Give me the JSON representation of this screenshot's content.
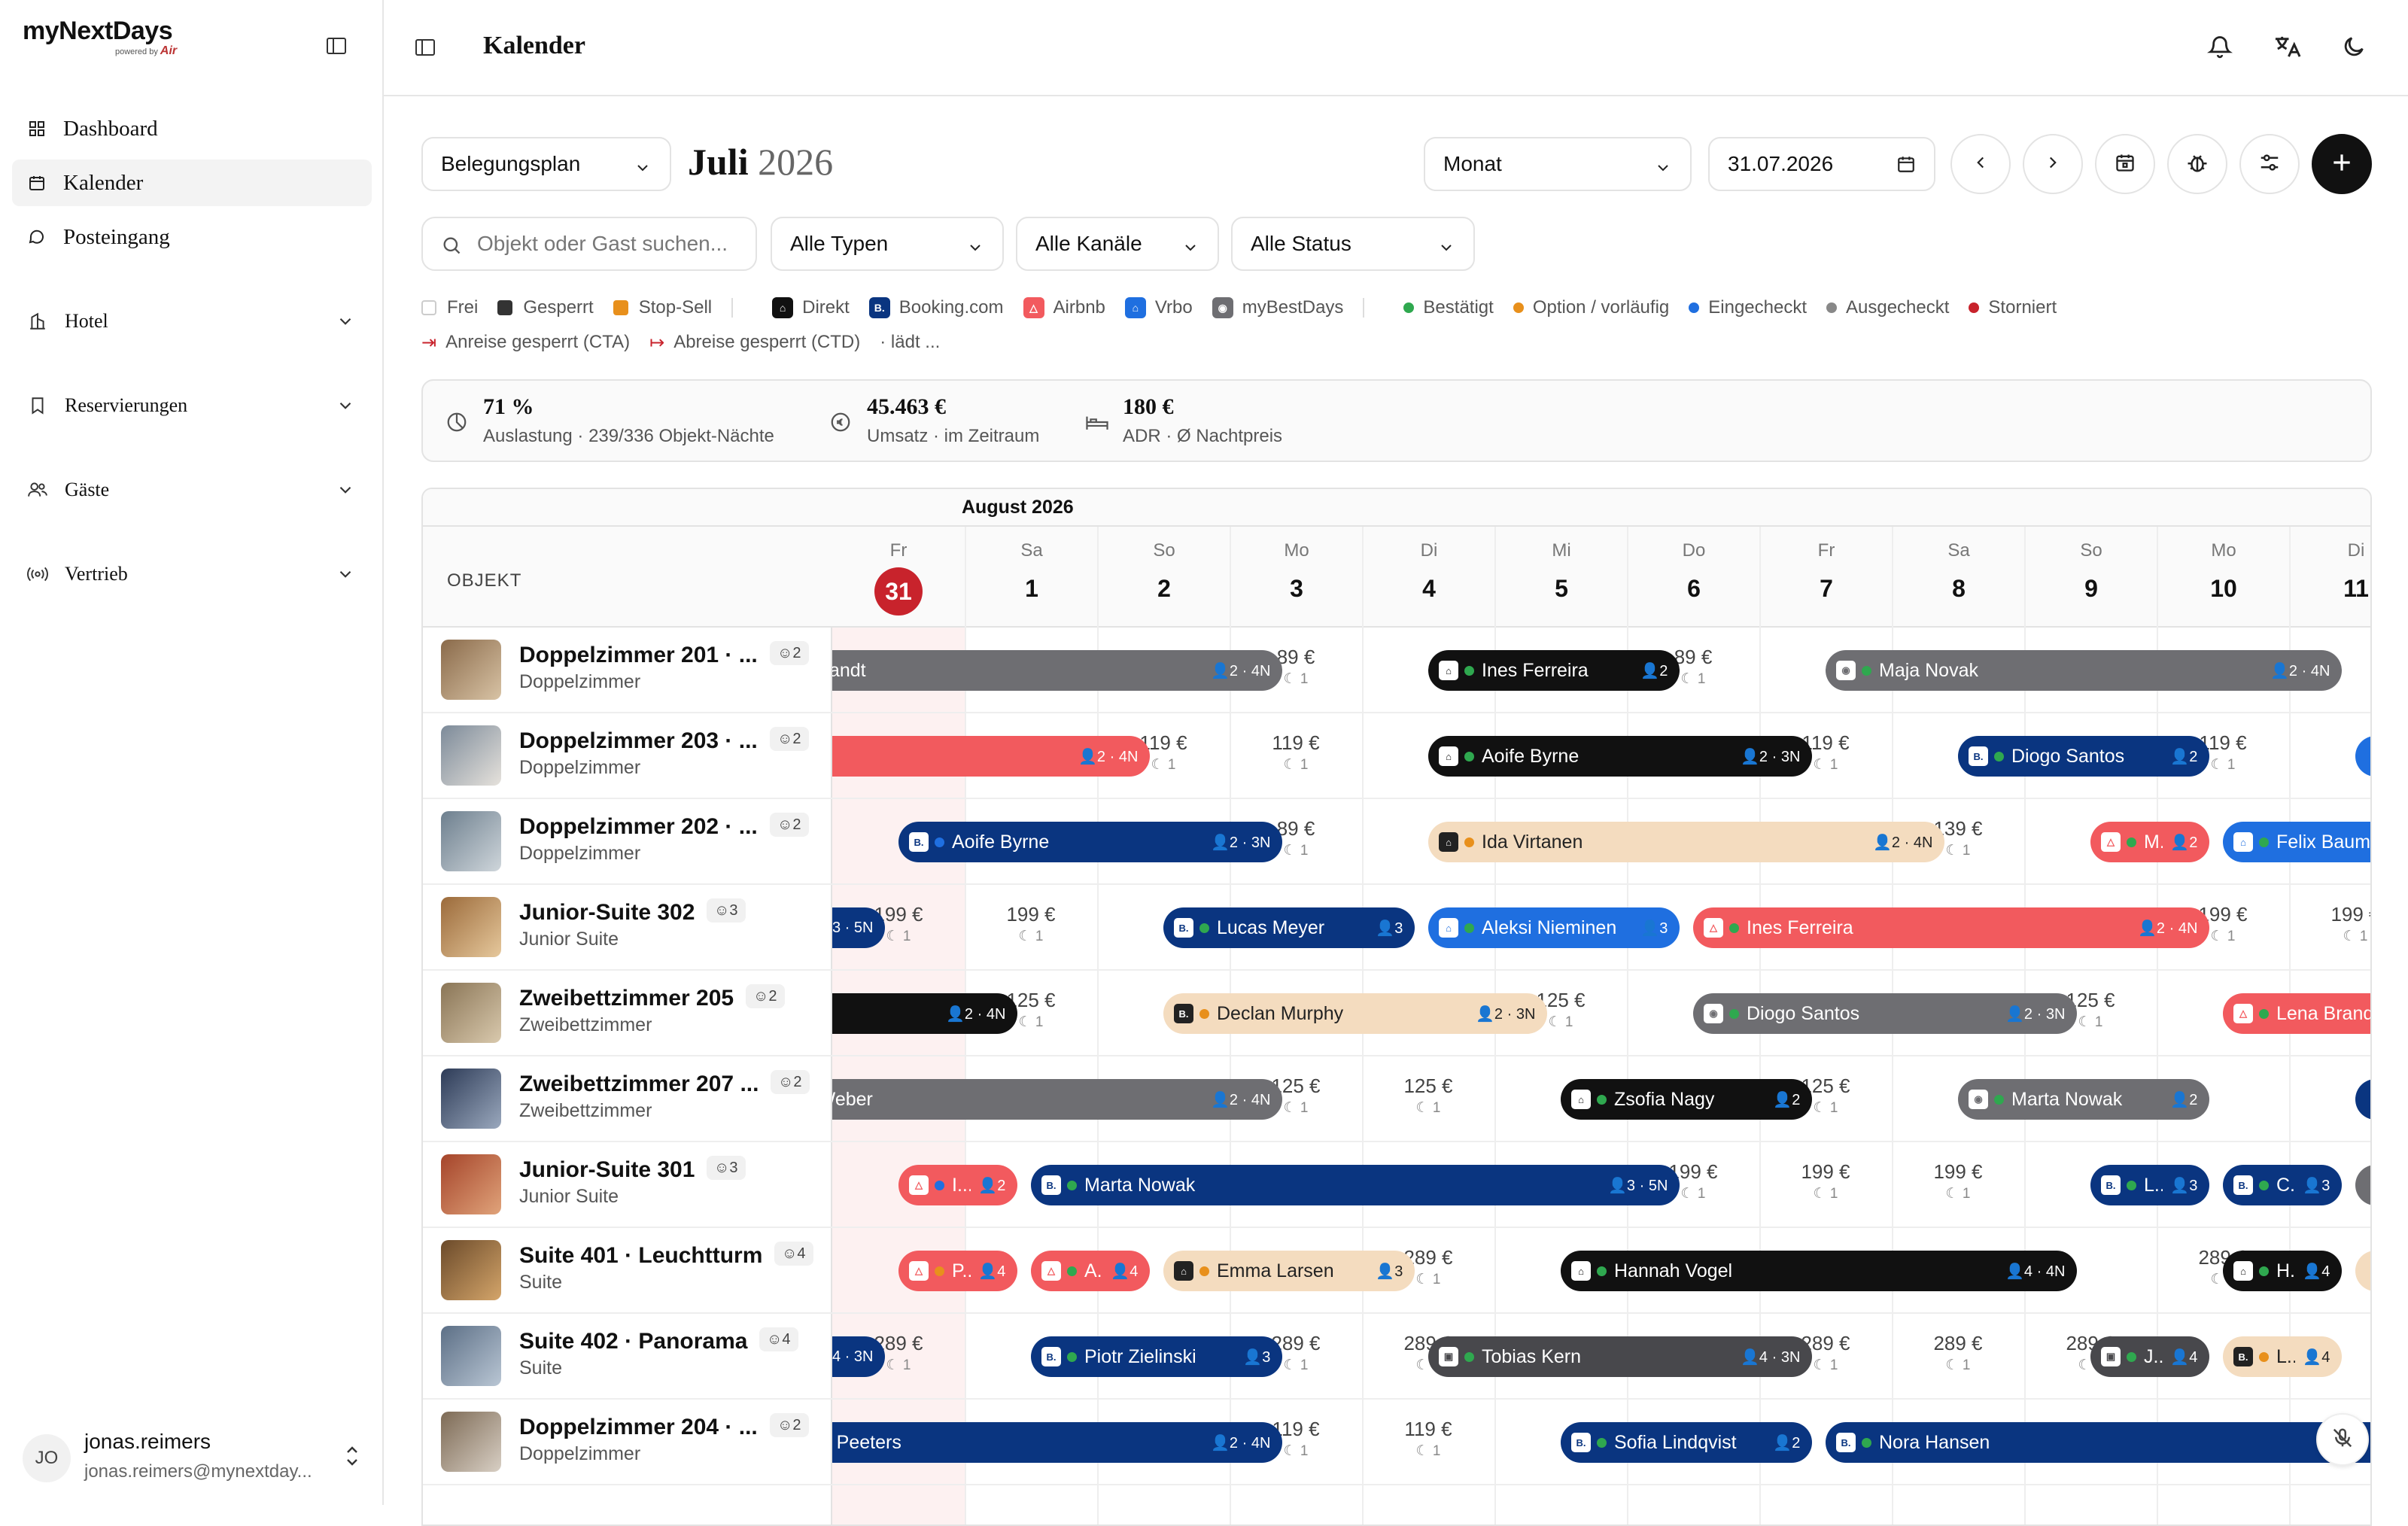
{
  "sidebar": {
    "logo": {
      "name": "myNextDays",
      "powered": "powered by",
      "brand": "Air"
    },
    "items": [
      {
        "label": "Dashboard"
      },
      {
        "label": "Kalender"
      },
      {
        "label": "Posteingang"
      }
    ],
    "groups": [
      {
        "label": "Hotel"
      },
      {
        "label": "Reservierungen"
      },
      {
        "label": "Gäste"
      },
      {
        "label": "Vertrieb"
      }
    ],
    "user": {
      "initials": "JO",
      "name": "jonas.reimers",
      "email": "jonas.reimers@mynextday..."
    }
  },
  "header": {
    "title": "Kalender"
  },
  "toolbar": {
    "view": "Belegungsplan",
    "month_name": "Juli",
    "month_year": "2026",
    "range": "Monat",
    "date": "31.07.2026",
    "search_placeholder": "Objekt oder Gast suchen...",
    "types": "Alle Typen",
    "channels": "Alle Kanäle",
    "status": "Alle Status"
  },
  "legend": {
    "avail": [
      {
        "label": "Frei",
        "color": "#ffffff"
      },
      {
        "label": "Gesperrt",
        "color": "#333333"
      },
      {
        "label": "Stop-Sell",
        "color": "#e8901c"
      }
    ],
    "channels": [
      {
        "label": "Direkt",
        "color": "#111111",
        "icon": "home-icon"
      },
      {
        "label": "Booking.com",
        "color": "#0a3580",
        "icon": "B."
      },
      {
        "label": "Airbnb",
        "color": "#f25a5e",
        "icon": "airbnb-icon"
      },
      {
        "label": "Vrbo",
        "color": "#1f6fe0",
        "icon": "home-icon"
      },
      {
        "label": "myBestDays",
        "color": "#6e6e72",
        "icon": "globe-icon"
      }
    ],
    "statuses": [
      {
        "label": "Bestätigt",
        "color": "#2fa84f"
      },
      {
        "label": "Option / vorläufig",
        "color": "#e8901c"
      },
      {
        "label": "Eingecheckt",
        "color": "#1f6fe0"
      },
      {
        "label": "Ausgecheckt",
        "color": "#888888"
      },
      {
        "label": "Storniert",
        "color": "#c8232c"
      }
    ],
    "cta": "Anreise gesperrt (CTA)",
    "ctd": "Abreise gesperrt (CTD)",
    "loading": "· lädt ..."
  },
  "stats": [
    {
      "value": "71 %",
      "label": "Auslastung · 239/336 Objekt-Nächte"
    },
    {
      "value": "45.463 €",
      "label": "Umsatz · im Zeitraum"
    },
    {
      "value": "180 €",
      "label": "ADR · Ø Nachtpreis"
    }
  ],
  "calendar": {
    "month_label": "August 2026",
    "object_header": "OBJEKT",
    "days": [
      {
        "wd": "Fr",
        "dn": "31",
        "today": true
      },
      {
        "wd": "Sa",
        "dn": "1"
      },
      {
        "wd": "So",
        "dn": "2"
      },
      {
        "wd": "Mo",
        "dn": "3"
      },
      {
        "wd": "Di",
        "dn": "4"
      },
      {
        "wd": "Mi",
        "dn": "5"
      },
      {
        "wd": "Do",
        "dn": "6"
      },
      {
        "wd": "Fr",
        "dn": "7"
      },
      {
        "wd": "Sa",
        "dn": "8"
      },
      {
        "wd": "So",
        "dn": "9"
      },
      {
        "wd": "Mo",
        "dn": "10"
      },
      {
        "wd": "Di",
        "dn": "11"
      }
    ],
    "rooms": [
      {
        "name": "Doppelzimmer 201 · ...",
        "type": "Doppelzimmer",
        "cap": "2"
      },
      {
        "name": "Doppelzimmer 203 · ...",
        "type": "Doppelzimmer",
        "cap": "2"
      },
      {
        "name": "Doppelzimmer 202 · ...",
        "type": "Doppelzimmer",
        "cap": "2"
      },
      {
        "name": "Junior-Suite 302",
        "type": "Junior Suite",
        "cap": "3"
      },
      {
        "name": "Zweibettzimmer 205",
        "type": "Zweibettzimmer",
        "cap": "2"
      },
      {
        "name": "Zweibettzimmer 207 ...",
        "type": "Zweibettzimmer",
        "cap": "2"
      },
      {
        "name": "Junior-Suite 301",
        "type": "Junior Suite",
        "cap": "3"
      },
      {
        "name": "Suite 401 · Leuchtturm",
        "type": "Suite",
        "cap": "4"
      },
      {
        "name": "Suite 402 · Panorama",
        "type": "Suite",
        "cap": "4"
      },
      {
        "name": "Doppelzimmer 204 · ...",
        "type": "Doppelzimmer",
        "cap": "2"
      }
    ],
    "prices": [
      {
        "row": 0,
        "col": 3,
        "text": "89 €",
        "min": "1"
      },
      {
        "row": 0,
        "col": 6,
        "text": "89 €",
        "min": "1"
      },
      {
        "row": 1,
        "col": 2,
        "text": "119 €",
        "min": "1"
      },
      {
        "row": 1,
        "col": 3,
        "text": "119 €",
        "min": "1"
      },
      {
        "row": 1,
        "col": 7,
        "text": "119 €",
        "min": "1"
      },
      {
        "row": 1,
        "col": 10,
        "text": "119 €",
        "min": "1"
      },
      {
        "row": 2,
        "col": 3,
        "text": "89 €",
        "min": "1"
      },
      {
        "row": 2,
        "col": 8,
        "text": "139 €",
        "min": "1"
      },
      {
        "row": 3,
        "col": 0,
        "text": "199 €",
        "min": "1"
      },
      {
        "row": 3,
        "col": 1,
        "text": "199 €",
        "min": "1"
      },
      {
        "row": 3,
        "col": 10,
        "text": "199 €",
        "min": "1"
      },
      {
        "row": 3,
        "col": 11,
        "text": "199 €",
        "min": "1"
      },
      {
        "row": 4,
        "col": 1,
        "text": "125 €",
        "min": "1"
      },
      {
        "row": 4,
        "col": 5,
        "text": "125 €",
        "min": "1"
      },
      {
        "row": 4,
        "col": 9,
        "text": "125 €",
        "min": "1"
      },
      {
        "row": 5,
        "col": 3,
        "text": "125 €",
        "min": "1"
      },
      {
        "row": 5,
        "col": 4,
        "text": "125 €",
        "min": "1"
      },
      {
        "row": 5,
        "col": 7,
        "text": "125 €",
        "min": "1"
      },
      {
        "row": 6,
        "col": 6,
        "text": "199 €",
        "min": "1"
      },
      {
        "row": 6,
        "col": 7,
        "text": "199 €",
        "min": "1"
      },
      {
        "row": 6,
        "col": 8,
        "text": "199 €",
        "min": "1"
      },
      {
        "row": 7,
        "col": 4,
        "text": "289 €",
        "min": "1"
      },
      {
        "row": 7,
        "col": 10,
        "text": "289 €",
        "min": "1"
      },
      {
        "row": 8,
        "col": 0,
        "text": "289 €",
        "min": "1"
      },
      {
        "row": 8,
        "col": 3,
        "text": "289 €",
        "min": "1"
      },
      {
        "row": 8,
        "col": 4,
        "text": "289 €",
        "min": "1"
      },
      {
        "row": 8,
        "col": 7,
        "text": "289 €",
        "min": "1"
      },
      {
        "row": 8,
        "col": 8,
        "text": "289 €",
        "min": "1"
      },
      {
        "row": 8,
        "col": 9,
        "text": "289 €",
        "min": "1"
      },
      {
        "row": 9,
        "col": 3,
        "text": "119 €",
        "min": "1"
      },
      {
        "row": 9,
        "col": 4,
        "text": "119 €",
        "min": "1"
      }
    ],
    "bookings": [
      {
        "row": 0,
        "start": -0.6,
        "end": 3.4,
        "color": "#6e6e72",
        "fg": "#fff",
        "guest": "Lena Brandt",
        "meta": "👤2 · 4N",
        "ch": "",
        "st": ""
      },
      {
        "row": 0,
        "start": 4.5,
        "end": 6.4,
        "color": "#111111",
        "fg": "#fff",
        "guest": "Ines Ferreira",
        "meta": "👤2",
        "ch": "⌂",
        "st": "#2fa84f"
      },
      {
        "row": 0,
        "start": 7.5,
        "end": 11.4,
        "color": "#6e6e72",
        "fg": "#fff",
        "guest": "Maja Novak",
        "meta": "👤2 · 4N",
        "ch": "◉",
        "st": "#2fa84f"
      },
      {
        "row": 1,
        "start": -0.6,
        "end": 2.4,
        "color": "#f25a5e",
        "fg": "#fff",
        "guest": "",
        "meta": "👤2 · 4N",
        "ch": "",
        "st": ""
      },
      {
        "row": 1,
        "start": 4.5,
        "end": 7.4,
        "color": "#111111",
        "fg": "#fff",
        "guest": "Aoife Byrne",
        "meta": "👤2 · 3N",
        "ch": "⌂",
        "st": "#2fa84f"
      },
      {
        "row": 1,
        "start": 8.5,
        "end": 10.4,
        "color": "#0a3580",
        "fg": "#fff",
        "guest": "Diogo Santos",
        "meta": "👤2",
        "ch": "B.",
        "st": "#2fa84f"
      },
      {
        "row": 1,
        "start": 11.5,
        "end": 12.6,
        "color": "#1f6fe0",
        "fg": "#fff",
        "guest": "",
        "meta": "",
        "ch": "",
        "st": ""
      },
      {
        "row": 2,
        "start": 0.5,
        "end": 3.4,
        "color": "#0a3580",
        "fg": "#fff",
        "guest": "Aoife Byrne",
        "meta": "👤2 · 3N",
        "ch": "B.",
        "st": "#1f6fe0"
      },
      {
        "row": 2,
        "start": 4.5,
        "end": 8.4,
        "color": "#f4dcbf",
        "fg": "#222",
        "guest": "Ida Virtanen",
        "meta": "👤2 · 4N",
        "ch": "⌂",
        "st": "#e8901c"
      },
      {
        "row": 2,
        "start": 9.5,
        "end": 10.4,
        "color": "#f25a5e",
        "fg": "#fff",
        "guest": "M..",
        "meta": "👤2",
        "ch": "△",
        "st": "#2fa84f"
      },
      {
        "row": 2,
        "start": 10.5,
        "end": 12.6,
        "color": "#1f6fe0",
        "fg": "#fff",
        "guest": "Felix Baum",
        "meta": "",
        "ch": "⌂",
        "st": "#2fa84f"
      },
      {
        "row": 3,
        "start": -0.6,
        "end": 0.4,
        "color": "#0a3580",
        "fg": "#fff",
        "guest": "",
        "meta": "3 · 5N",
        "ch": "",
        "st": ""
      },
      {
        "row": 3,
        "start": 2.5,
        "end": 4.4,
        "color": "#0a3580",
        "fg": "#fff",
        "guest": "Lucas Meyer",
        "meta": "👤3",
        "ch": "B.",
        "st": "#2fa84f"
      },
      {
        "row": 3,
        "start": 4.5,
        "end": 6.4,
        "color": "#1f6fe0",
        "fg": "#fff",
        "guest": "Aleksi Nieminen",
        "meta": "👤3",
        "ch": "⌂",
        "st": "#2fa84f"
      },
      {
        "row": 3,
        "start": 6.5,
        "end": 10.4,
        "color": "#f25a5e",
        "fg": "#fff",
        "guest": "Ines Ferreira",
        "meta": "👤2 · 4N",
        "ch": "△",
        "st": "#2fa84f"
      },
      {
        "row": 4,
        "start": -0.6,
        "end": 1.4,
        "color": "#111111",
        "fg": "#fff",
        "guest": "",
        "meta": "👤2 · 4N",
        "ch": "",
        "st": ""
      },
      {
        "row": 4,
        "start": 2.5,
        "end": 5.4,
        "color": "#f4dcbf",
        "fg": "#222",
        "guest": "Declan Murphy",
        "meta": "👤2 · 3N",
        "ch": "B.",
        "st": "#e8901c"
      },
      {
        "row": 4,
        "start": 6.5,
        "end": 9.4,
        "color": "#6e6e72",
        "fg": "#fff",
        "guest": "Diogo Santos",
        "meta": "👤2 · 3N",
        "ch": "◉",
        "st": "#2fa84f"
      },
      {
        "row": 4,
        "start": 10.5,
        "end": 12.6,
        "color": "#f25a5e",
        "fg": "#fff",
        "guest": "Lena Brand",
        "meta": "",
        "ch": "△",
        "st": "#2fa84f"
      },
      {
        "row": 5,
        "start": -0.6,
        "end": 3.4,
        "color": "#6e6e72",
        "fg": "#fff",
        "guest": "Nadja Weber",
        "meta": "👤2 · 4N",
        "ch": "",
        "st": ""
      },
      {
        "row": 5,
        "start": 5.5,
        "end": 7.4,
        "color": "#111111",
        "fg": "#fff",
        "guest": "Zsofia Nagy",
        "meta": "👤2",
        "ch": "⌂",
        "st": "#2fa84f"
      },
      {
        "row": 5,
        "start": 8.5,
        "end": 10.4,
        "color": "#6e6e72",
        "fg": "#fff",
        "guest": "Marta Nowak",
        "meta": "👤2",
        "ch": "◉",
        "st": "#2fa84f"
      },
      {
        "row": 5,
        "start": 11.5,
        "end": 12.6,
        "color": "#0a3580",
        "fg": "#fff",
        "guest": "",
        "meta": "",
        "ch": "",
        "st": ""
      },
      {
        "row": 6,
        "start": 0.5,
        "end": 1.4,
        "color": "#f25a5e",
        "fg": "#fff",
        "guest": "I...",
        "meta": "👤2",
        "ch": "△",
        "st": "#1f6fe0"
      },
      {
        "row": 6,
        "start": 1.5,
        "end": 6.4,
        "color": "#0a3580",
        "fg": "#fff",
        "guest": "Marta Nowak",
        "meta": "👤3 · 5N",
        "ch": "B.",
        "st": "#2fa84f"
      },
      {
        "row": 6,
        "start": 9.5,
        "end": 10.4,
        "color": "#0a3580",
        "fg": "#fff",
        "guest": "L...",
        "meta": "👤3",
        "ch": "B.",
        "st": "#2fa84f"
      },
      {
        "row": 6,
        "start": 10.5,
        "end": 11.4,
        "color": "#0a3580",
        "fg": "#fff",
        "guest": "C...",
        "meta": "👤3",
        "ch": "B.",
        "st": "#2fa84f"
      },
      {
        "row": 6,
        "start": 11.5,
        "end": 12.6,
        "color": "#6e6e72",
        "fg": "#fff",
        "guest": "",
        "meta": "",
        "ch": "",
        "st": ""
      },
      {
        "row": 7,
        "start": 0.5,
        "end": 1.4,
        "color": "#f25a5e",
        "fg": "#fff",
        "guest": "P...",
        "meta": "👤4",
        "ch": "△",
        "st": "#e8901c"
      },
      {
        "row": 7,
        "start": 1.5,
        "end": 2.4,
        "color": "#f25a5e",
        "fg": "#fff",
        "guest": "A...",
        "meta": "👤4",
        "ch": "△",
        "st": "#2fa84f"
      },
      {
        "row": 7,
        "start": 2.5,
        "end": 4.4,
        "color": "#f4dcbf",
        "fg": "#222",
        "guest": "Emma Larsen",
        "meta": "👤3",
        "ch": "⌂",
        "st": "#e8901c"
      },
      {
        "row": 7,
        "start": 5.5,
        "end": 9.4,
        "color": "#111111",
        "fg": "#fff",
        "guest": "Hannah Vogel",
        "meta": "👤4 · 4N",
        "ch": "⌂",
        "st": "#2fa84f"
      },
      {
        "row": 7,
        "start": 10.5,
        "end": 11.4,
        "color": "#111111",
        "fg": "#fff",
        "guest": "H...",
        "meta": "👤4",
        "ch": "⌂",
        "st": "#2fa84f"
      },
      {
        "row": 7,
        "start": 11.5,
        "end": 12.6,
        "color": "#f4dcbf",
        "fg": "#222",
        "guest": "",
        "meta": "",
        "ch": "",
        "st": ""
      },
      {
        "row": 8,
        "start": -0.6,
        "end": 0.4,
        "color": "#0a3580",
        "fg": "#fff",
        "guest": "",
        "meta": "4 · 3N",
        "ch": "",
        "st": ""
      },
      {
        "row": 8,
        "start": 1.5,
        "end": 3.4,
        "color": "#0a3580",
        "fg": "#fff",
        "guest": "Piotr Zielinski",
        "meta": "👤3",
        "ch": "B.",
        "st": "#2fa84f"
      },
      {
        "row": 8,
        "start": 4.5,
        "end": 7.4,
        "color": "#48484c",
        "fg": "#fff",
        "guest": "Tobias Kern",
        "meta": "👤4 · 3N",
        "ch": "▣",
        "st": "#2fa84f"
      },
      {
        "row": 8,
        "start": 9.5,
        "end": 10.4,
        "color": "#48484c",
        "fg": "#fff",
        "guest": "J...",
        "meta": "👤4",
        "ch": "▣",
        "st": "#2fa84f"
      },
      {
        "row": 8,
        "start": 10.5,
        "end": 11.4,
        "color": "#f4dcbf",
        "fg": "#222",
        "guest": "L...",
        "meta": "👤4",
        "ch": "B.",
        "st": "#e8901c"
      },
      {
        "row": 9,
        "start": -0.6,
        "end": 3.4,
        "color": "#0a3580",
        "fg": "#fff",
        "guest": "Thomas Peeters",
        "meta": "👤2 · 4N",
        "ch": "",
        "st": ""
      },
      {
        "row": 9,
        "start": 5.5,
        "end": 7.4,
        "color": "#0a3580",
        "fg": "#fff",
        "guest": "Sofia Lindqvist",
        "meta": "👤2",
        "ch": "B.",
        "st": "#2fa84f"
      },
      {
        "row": 9,
        "start": 7.5,
        "end": 12.6,
        "color": "#0a3580",
        "fg": "#fff",
        "guest": "Nora Hansen",
        "meta": "",
        "ch": "B.",
        "st": "#2fa84f"
      }
    ]
  }
}
